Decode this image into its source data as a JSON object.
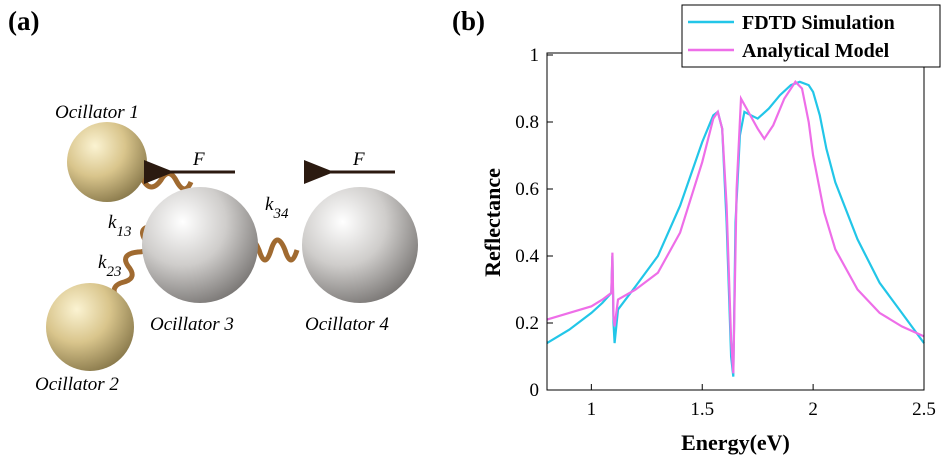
{
  "diagram": {
    "panel_label": "(a)",
    "oscillators": [
      "Ocillator 1",
      "Ocillator 2",
      "Ocillator 3",
      "Ocillator 4"
    ],
    "forces": [
      "F",
      "F"
    ],
    "springs": [
      {
        "symbol": "k",
        "subscript": "13"
      },
      {
        "symbol": "k",
        "subscript": "23"
      },
      {
        "symbol": "k",
        "subscript": "34"
      }
    ]
  },
  "chart_data": {
    "type": "line",
    "panel_label": "(b)",
    "x_label": "Energy(eV)",
    "y_label": "Reflectance",
    "xlim": [
      0.8,
      2.5
    ],
    "xticks": [
      1,
      1.5,
      2,
      2.5
    ],
    "ylim": [
      0,
      1
    ],
    "yticks": [
      0,
      0.2,
      0.4,
      0.6,
      0.8,
      1
    ],
    "legend": "upper right",
    "series": [
      {
        "name": "FDTD Simulation",
        "color": "#22c6e8",
        "x": [
          0.8,
          0.9,
          1.0,
          1.05,
          1.09,
          1.095,
          1.1,
          1.105,
          1.12,
          1.2,
          1.3,
          1.4,
          1.5,
          1.55,
          1.57,
          1.59,
          1.61,
          1.63,
          1.64,
          1.65,
          1.67,
          1.69,
          1.72,
          1.75,
          1.8,
          1.85,
          1.9,
          1.94,
          1.98,
          2.0,
          2.03,
          2.06,
          2.1,
          2.2,
          2.3,
          2.4,
          2.5
        ],
        "values": [
          0.14,
          0.18,
          0.23,
          0.26,
          0.29,
          0.4,
          0.2,
          0.14,
          0.24,
          0.31,
          0.4,
          0.55,
          0.74,
          0.82,
          0.83,
          0.78,
          0.5,
          0.1,
          0.04,
          0.5,
          0.76,
          0.83,
          0.82,
          0.81,
          0.84,
          0.88,
          0.91,
          0.92,
          0.91,
          0.89,
          0.82,
          0.72,
          0.62,
          0.45,
          0.32,
          0.23,
          0.14
        ]
      },
      {
        "name": "Analytical Model",
        "color": "#ee6ee8",
        "x": [
          0.8,
          0.9,
          1.0,
          1.05,
          1.09,
          1.095,
          1.1,
          1.105,
          1.12,
          1.2,
          1.3,
          1.4,
          1.5,
          1.55,
          1.57,
          1.59,
          1.61,
          1.63,
          1.64,
          1.655,
          1.675,
          1.7,
          1.75,
          1.78,
          1.82,
          1.87,
          1.92,
          1.95,
          1.98,
          2.0,
          2.05,
          2.1,
          2.2,
          2.3,
          2.4,
          2.5
        ],
        "values": [
          0.21,
          0.23,
          0.25,
          0.27,
          0.29,
          0.41,
          0.22,
          0.19,
          0.27,
          0.3,
          0.35,
          0.47,
          0.68,
          0.81,
          0.83,
          0.78,
          0.55,
          0.15,
          0.05,
          0.6,
          0.87,
          0.84,
          0.78,
          0.75,
          0.79,
          0.87,
          0.92,
          0.9,
          0.8,
          0.7,
          0.53,
          0.42,
          0.3,
          0.23,
          0.19,
          0.16
        ]
      }
    ]
  }
}
